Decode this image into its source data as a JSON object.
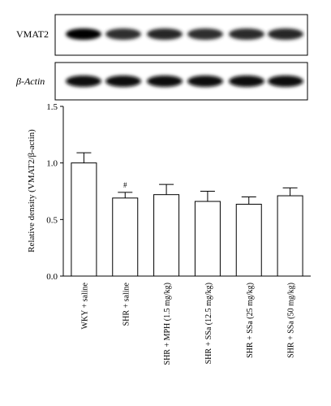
{
  "blots": [
    {
      "label": "VMAT2",
      "band_intensity": [
        1.0,
        0.7,
        0.75,
        0.7,
        0.72,
        0.74
      ]
    },
    {
      "label": "β-Actin",
      "band_intensity": [
        0.95,
        0.95,
        0.95,
        0.95,
        0.95,
        0.95
      ]
    }
  ],
  "chart_data": {
    "type": "bar",
    "categories": [
      "WKY + saline",
      "SHR + saline",
      "SHR + MPH (1.5 mg/kg)",
      "SHR + SSa (12.5 mg/kg)",
      "SHR + SSa (25 mg/kg)",
      "SHR + SSa (50 mg/kg)"
    ],
    "values": [
      1.0,
      0.69,
      0.72,
      0.66,
      0.635,
      0.71
    ],
    "errors": [
      0.09,
      0.05,
      0.09,
      0.09,
      0.065,
      0.07
    ],
    "annotations": [
      "",
      "#",
      "",
      "",
      "",
      ""
    ],
    "ylabel": "Relative density (VMAT2/β-actin)",
    "xlabel": "",
    "ylim": [
      0,
      1.5
    ],
    "yticks": [
      "0.0",
      "0.5",
      "1.0",
      "1.5"
    ],
    "grid": false,
    "bar_color": "#ffffff",
    "edge_color": "#000000"
  }
}
